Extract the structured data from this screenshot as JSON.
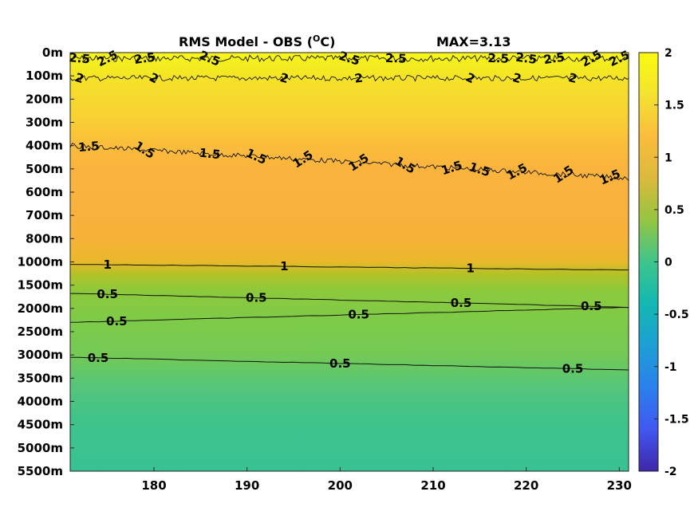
{
  "chart_data": {
    "type": "heatmap",
    "title": "RMS Model - OBS (",
    "title_unit": "O",
    "title_unit_suffix": "C)",
    "max_label": "MAX=3.13",
    "xlabel": "",
    "ylabel": "",
    "x_ticks": [
      "180",
      "190",
      "200",
      "210",
      "220",
      "230"
    ],
    "x_tick_values": [
      180,
      190,
      200,
      210,
      220,
      230
    ],
    "xlim": [
      171,
      231
    ],
    "y_ticks": [
      "0m",
      "100m",
      "200m",
      "300m",
      "400m",
      "500m",
      "600m",
      "700m",
      "800m",
      "1000m",
      "1500m",
      "2000m",
      "2500m",
      "3000m",
      "3500m",
      "4000m",
      "4500m",
      "5000m",
      "5500m"
    ],
    "y_axis_note": "depth levels (index scale, top to bottom)",
    "colorbar": {
      "ticks": [
        "2",
        "1.5",
        "1",
        "0.5",
        "0",
        "-0.5",
        "-1",
        "-1.5",
        "-2"
      ],
      "tick_values": [
        2,
        1.5,
        1,
        0.5,
        0,
        -0.5,
        -1,
        -1.5,
        -2
      ],
      "range": [
        -2,
        2
      ],
      "colormap": "parula"
    },
    "field_profile": {
      "depth_index": [
        0,
        0.5,
        1,
        2,
        3,
        4,
        5,
        6,
        7,
        8,
        9,
        9.5,
        10,
        11,
        12,
        13,
        14,
        15,
        16,
        17,
        18
      ],
      "values": [
        2.6,
        2.2,
        1.95,
        1.85,
        1.75,
        1.6,
        1.45,
        1.4,
        1.38,
        1.35,
        1.1,
        0.95,
        0.8,
        0.7,
        0.65,
        0.6,
        0.55,
        0.5,
        0.47,
        0.46,
        0.45
      ]
    },
    "contours": [
      {
        "level": "2.5",
        "depth_index": 0.25,
        "labels_x": [
          172,
          175,
          179,
          186,
          201,
          206,
          217,
          220,
          223,
          227,
          230
        ]
      },
      {
        "level": "2",
        "depth_index": 1.1,
        "labels_x": [
          172,
          180,
          194,
          202,
          214,
          219,
          225
        ]
      },
      {
        "level": "1.5",
        "depth_index_start": 4.0,
        "depth_index_end": 5.4,
        "labels_x": [
          173,
          179,
          186,
          191,
          196,
          202,
          207,
          212,
          215,
          219,
          224,
          229
        ]
      },
      {
        "level": "1",
        "depth_index_start": 9.1,
        "depth_index_end": 9.35,
        "labels_x": [
          175,
          194,
          214
        ]
      },
      {
        "level": "0.5",
        "depth_index_start": 10.35,
        "depth_index_end": 10.95,
        "labels_x": [
          175,
          191,
          213,
          227
        ]
      },
      {
        "level": "0.5",
        "depth_index_start": 11.6,
        "depth_index_end": 10.95,
        "labels_x": [
          176,
          202
        ]
      },
      {
        "level": "0.5",
        "depth_index_start": 13.1,
        "depth_index_end": 13.65,
        "labels_x": [
          174,
          200,
          225
        ]
      }
    ]
  }
}
